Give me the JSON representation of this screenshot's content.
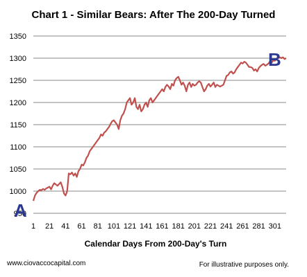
{
  "chart_data": {
    "type": "line",
    "title": "Chart 1 - Similar Bears:  After The 200-Day Turned",
    "xlabel": "Calendar Days From 200-Day's Turn",
    "ylabel": "",
    "xlim": [
      1,
      315
    ],
    "ylim": [
      950,
      1350
    ],
    "x_ticks": [
      "1",
      "21",
      "41",
      "61",
      "81",
      "101",
      "121",
      "141",
      "161",
      "181",
      "201",
      "221",
      "241",
      "261",
      "281",
      "301"
    ],
    "y_ticks": [
      "950",
      "1000",
      "1050",
      "1100",
      "1150",
      "1200",
      "1250",
      "1300",
      "1350"
    ],
    "grid": true,
    "series": [
      {
        "color": "#c0504d",
        "x": [
          1,
          3,
          5,
          7,
          9,
          11,
          13,
          15,
          17,
          19,
          21,
          23,
          25,
          27,
          29,
          31,
          33,
          35,
          37,
          39,
          41,
          43,
          45,
          47,
          49,
          51,
          53,
          55,
          57,
          59,
          61,
          63,
          65,
          67,
          69,
          71,
          73,
          75,
          77,
          79,
          81,
          83,
          85,
          87,
          89,
          91,
          93,
          95,
          97,
          99,
          101,
          103,
          105,
          107,
          109,
          111,
          113,
          115,
          117,
          119,
          121,
          123,
          125,
          127,
          129,
          131,
          133,
          135,
          137,
          139,
          141,
          143,
          145,
          147,
          149,
          151,
          153,
          155,
          157,
          159,
          161,
          163,
          165,
          167,
          169,
          171,
          173,
          175,
          177,
          179,
          181,
          183,
          185,
          187,
          189,
          191,
          193,
          195,
          197,
          199,
          201,
          203,
          205,
          207,
          209,
          211,
          213,
          215,
          217,
          219,
          221,
          223,
          225,
          227,
          229,
          231,
          233,
          235,
          237,
          239,
          241,
          243,
          245,
          247,
          249,
          251,
          253,
          255,
          257,
          259,
          261,
          263,
          265,
          267,
          269,
          271,
          273,
          275,
          277,
          279,
          281,
          283,
          285,
          287,
          289,
          291,
          293,
          295,
          297,
          299,
          301,
          303,
          305,
          307,
          309,
          311,
          313,
          315
        ],
        "values": [
          978,
          990,
          996,
          1000,
          1003,
          1002,
          1005,
          1003,
          1006,
          1008,
          1010,
          1004,
          1012,
          1018,
          1015,
          1012,
          1016,
          1020,
          1010,
          995,
          990,
          1000,
          1040,
          1038,
          1042,
          1035,
          1040,
          1032,
          1045,
          1050,
          1060,
          1058,
          1065,
          1075,
          1080,
          1090,
          1095,
          1100,
          1105,
          1110,
          1115,
          1120,
          1128,
          1125,
          1132,
          1135,
          1140,
          1145,
          1152,
          1158,
          1160,
          1155,
          1150,
          1140,
          1160,
          1170,
          1175,
          1185,
          1200,
          1205,
          1210,
          1195,
          1200,
          1210,
          1190,
          1185,
          1195,
          1180,
          1185,
          1195,
          1200,
          1190,
          1205,
          1210,
          1200,
          1205,
          1210,
          1215,
          1220,
          1225,
          1230,
          1225,
          1235,
          1240,
          1236,
          1230,
          1242,
          1238,
          1250,
          1255,
          1258,
          1250,
          1240,
          1245,
          1238,
          1225,
          1240,
          1245,
          1235,
          1242,
          1238,
          1240,
          1245,
          1248,
          1245,
          1235,
          1225,
          1230,
          1238,
          1242,
          1236,
          1240,
          1245,
          1235,
          1240,
          1238,
          1236,
          1238,
          1240,
          1250,
          1260,
          1262,
          1268,
          1270,
          1265,
          1268,
          1275,
          1280,
          1285,
          1290,
          1288,
          1292,
          1290,
          1285,
          1280,
          1280,
          1278,
          1272,
          1275,
          1270,
          1278,
          1282,
          1285,
          1287,
          1283,
          1285,
          1288,
          1293,
          1290,
          1295,
          1294,
          1298,
          1300,
          1302,
          1300,
          1302,
          1298,
          1300
        ]
      }
    ],
    "annotations": [
      "A",
      "B"
    ]
  },
  "footer": {
    "website": "www.ciovaccocapital.com",
    "disclaimer": "For illustrative purposes only."
  }
}
